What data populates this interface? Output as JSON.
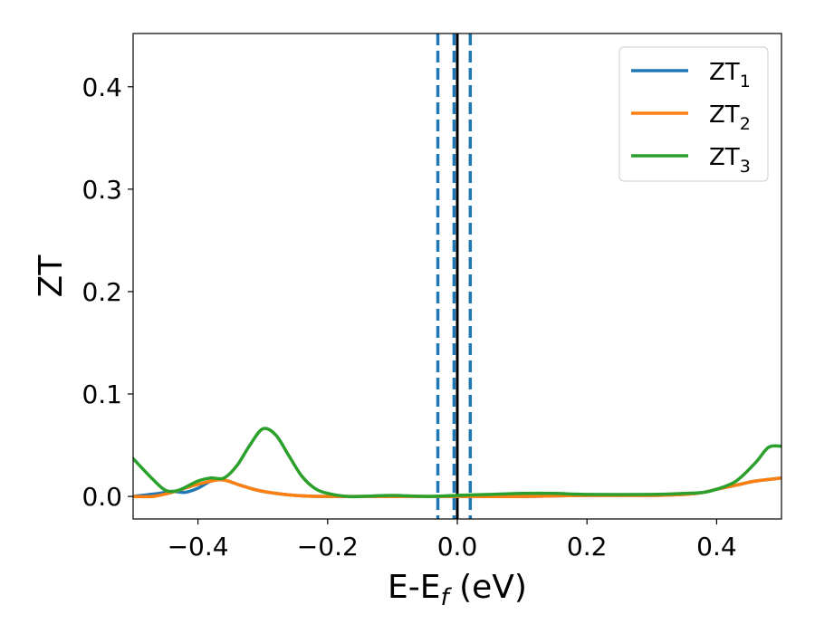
{
  "chart_data": {
    "type": "line",
    "xlabel": "E-E",
    "xlabel_sub": "f",
    "xlabel_unit": " (eV)",
    "ylabel": "ZT",
    "xlim": [
      -0.5,
      0.5
    ],
    "ylim": [
      -0.022,
      0.452
    ],
    "xticks": [
      -0.4,
      -0.2,
      0.0,
      0.2,
      0.4
    ],
    "xtick_labels": [
      "−0.4",
      "−0.2",
      "0.0",
      "0.2",
      "0.4"
    ],
    "yticks": [
      0.0,
      0.1,
      0.2,
      0.3,
      0.4
    ],
    "ytick_labels": [
      "0.0",
      "0.1",
      "0.2",
      "0.3",
      "0.4"
    ],
    "grid": false,
    "legend_position": "top-right",
    "vlines": [
      {
        "x": -0.03,
        "style": "dashed",
        "color": "#1f77b4"
      },
      {
        "x": -0.005,
        "style": "dashed",
        "color": "#1f77b4"
      },
      {
        "x": 0.0,
        "style": "solid",
        "color": "#000000"
      },
      {
        "x": 0.02,
        "style": "dashed",
        "color": "#1f77b4"
      }
    ],
    "series": [
      {
        "name": "ZT",
        "sub": "1",
        "color": "#1f77b4",
        "points": [
          [
            -0.5,
            0.0
          ],
          [
            -0.46,
            0.003
          ],
          [
            -0.44,
            0.005
          ],
          [
            -0.42,
            0.004
          ],
          [
            -0.4,
            0.008
          ],
          [
            -0.38,
            0.015
          ],
          [
            -0.36,
            0.016
          ],
          [
            -0.33,
            0.01
          ],
          [
            -0.3,
            0.005
          ],
          [
            -0.25,
            0.001
          ],
          [
            -0.2,
            0.0
          ],
          [
            -0.1,
            0.0
          ],
          [
            0.0,
            0.0
          ],
          [
            0.1,
            0.0
          ],
          [
            0.2,
            0.001
          ],
          [
            0.3,
            0.001
          ],
          [
            0.35,
            0.002
          ],
          [
            0.38,
            0.004
          ],
          [
            0.4,
            0.007
          ],
          [
            0.43,
            0.011
          ],
          [
            0.46,
            0.015
          ],
          [
            0.5,
            0.018
          ]
        ]
      },
      {
        "name": "ZT",
        "sub": "2",
        "color": "#ff7f0e",
        "points": [
          [
            -0.5,
            0.0
          ],
          [
            -0.47,
            0.0
          ],
          [
            -0.44,
            0.004
          ],
          [
            -0.41,
            0.01
          ],
          [
            -0.38,
            0.015
          ],
          [
            -0.36,
            0.016
          ],
          [
            -0.33,
            0.01
          ],
          [
            -0.3,
            0.005
          ],
          [
            -0.25,
            0.001
          ],
          [
            -0.2,
            0.0
          ],
          [
            -0.1,
            0.0
          ],
          [
            0.0,
            0.0
          ],
          [
            0.1,
            0.0
          ],
          [
            0.2,
            0.001
          ],
          [
            0.3,
            0.001
          ],
          [
            0.35,
            0.002
          ],
          [
            0.38,
            0.004
          ],
          [
            0.4,
            0.007
          ],
          [
            0.43,
            0.011
          ],
          [
            0.46,
            0.015
          ],
          [
            0.5,
            0.018
          ]
        ]
      },
      {
        "name": "ZT",
        "sub": "3",
        "color": "#2ca02c",
        "points": [
          [
            -0.5,
            0.037
          ],
          [
            -0.47,
            0.017
          ],
          [
            -0.45,
            0.006
          ],
          [
            -0.43,
            0.006
          ],
          [
            -0.4,
            0.015
          ],
          [
            -0.38,
            0.018
          ],
          [
            -0.36,
            0.018
          ],
          [
            -0.34,
            0.03
          ],
          [
            -0.32,
            0.05
          ],
          [
            -0.3,
            0.066
          ],
          [
            -0.28,
            0.06
          ],
          [
            -0.26,
            0.04
          ],
          [
            -0.24,
            0.02
          ],
          [
            -0.22,
            0.008
          ],
          [
            -0.2,
            0.003
          ],
          [
            -0.17,
            0.0
          ],
          [
            -0.15,
            0.0
          ],
          [
            -0.1,
            0.001
          ],
          [
            -0.05,
            0.0
          ],
          [
            0.0,
            0.001
          ],
          [
            0.05,
            0.002
          ],
          [
            0.1,
            0.003
          ],
          [
            0.15,
            0.003
          ],
          [
            0.2,
            0.002
          ],
          [
            0.3,
            0.002
          ],
          [
            0.35,
            0.003
          ],
          [
            0.38,
            0.004
          ],
          [
            0.4,
            0.007
          ],
          [
            0.43,
            0.015
          ],
          [
            0.46,
            0.033
          ],
          [
            0.48,
            0.048
          ],
          [
            0.5,
            0.049
          ]
        ]
      }
    ]
  }
}
